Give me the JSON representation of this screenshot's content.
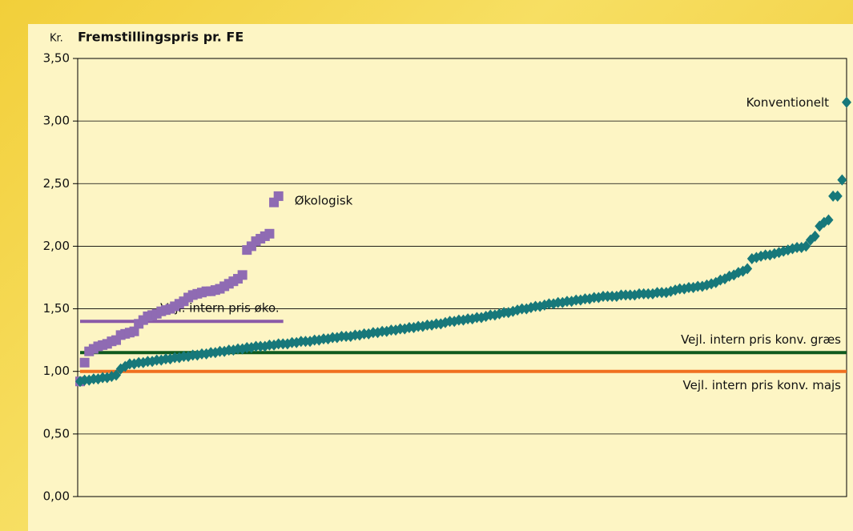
{
  "chart_data": {
    "type": "scatter",
    "title": "Fremstillingspris pr. FE",
    "y_label": "Kr.",
    "ylim": [
      0,
      3.5
    ],
    "yticks": [
      {
        "value": 0,
        "label": "0,00"
      },
      {
        "value": 0.5,
        "label": "0,50"
      },
      {
        "value": 1,
        "label": "1,00"
      },
      {
        "value": 1.5,
        "label": "1,50"
      },
      {
        "value": 2,
        "label": "2,00"
      },
      {
        "value": 2.5,
        "label": "2,50"
      },
      {
        "value": 3,
        "label": "3,00"
      },
      {
        "value": 3.5,
        "label": "3,50"
      }
    ],
    "grid": true,
    "series": [
      {
        "name": "Økologisk",
        "color": "#8f6bb3",
        "marker": "square",
        "values": [
          0.92,
          1.07,
          1.16,
          1.18,
          1.2,
          1.21,
          1.22,
          1.24,
          1.25,
          1.29,
          1.3,
          1.31,
          1.32,
          1.38,
          1.41,
          1.44,
          1.45,
          1.46,
          1.48,
          1.49,
          1.5,
          1.52,
          1.54,
          1.56,
          1.59,
          1.61,
          1.62,
          1.63,
          1.64,
          1.64,
          1.65,
          1.66,
          1.68,
          1.7,
          1.72,
          1.74,
          1.77,
          1.97,
          2.0,
          2.04,
          2.06,
          2.08,
          2.1,
          2.35,
          2.4
        ]
      },
      {
        "name": "Konventionelt",
        "color": "#17787a",
        "marker": "diamond",
        "values": [
          0.92,
          0.93,
          0.93,
          0.94,
          0.94,
          0.95,
          0.95,
          0.96,
          0.97,
          1.02,
          1.04,
          1.06,
          1.06,
          1.07,
          1.07,
          1.08,
          1.08,
          1.09,
          1.09,
          1.1,
          1.1,
          1.11,
          1.11,
          1.12,
          1.12,
          1.13,
          1.13,
          1.14,
          1.14,
          1.15,
          1.15,
          1.16,
          1.16,
          1.17,
          1.17,
          1.18,
          1.18,
          1.19,
          1.19,
          1.2,
          1.2,
          1.2,
          1.21,
          1.21,
          1.22,
          1.22,
          1.22,
          1.23,
          1.23,
          1.24,
          1.24,
          1.24,
          1.25,
          1.25,
          1.26,
          1.26,
          1.27,
          1.27,
          1.28,
          1.28,
          1.28,
          1.29,
          1.29,
          1.3,
          1.3,
          1.31,
          1.31,
          1.32,
          1.32,
          1.33,
          1.33,
          1.34,
          1.34,
          1.35,
          1.35,
          1.36,
          1.36,
          1.37,
          1.37,
          1.38,
          1.38,
          1.39,
          1.4,
          1.4,
          1.41,
          1.41,
          1.42,
          1.42,
          1.43,
          1.43,
          1.44,
          1.45,
          1.45,
          1.46,
          1.47,
          1.47,
          1.48,
          1.49,
          1.5,
          1.5,
          1.51,
          1.52,
          1.52,
          1.53,
          1.54,
          1.54,
          1.55,
          1.55,
          1.56,
          1.56,
          1.57,
          1.57,
          1.58,
          1.58,
          1.59,
          1.59,
          1.6,
          1.6,
          1.6,
          1.6,
          1.61,
          1.61,
          1.61,
          1.61,
          1.62,
          1.62,
          1.62,
          1.62,
          1.63,
          1.63,
          1.63,
          1.64,
          1.65,
          1.66,
          1.66,
          1.67,
          1.67,
          1.68,
          1.68,
          1.69,
          1.7,
          1.71,
          1.73,
          1.74,
          1.76,
          1.77,
          1.79,
          1.8,
          1.82,
          1.9,
          1.91,
          1.92,
          1.93,
          1.93,
          1.94,
          1.95,
          1.96,
          1.97,
          1.98,
          1.99,
          1.99,
          2.0,
          2.05,
          2.08,
          2.16,
          2.19,
          2.21,
          2.4,
          2.4,
          2.53,
          3.15
        ]
      }
    ],
    "reference_lines": [
      {
        "label": "Vejl. intern pris øko.",
        "value": 1.4,
        "color": "#8a5aa8",
        "span": "Økologisk",
        "label_side": "above"
      },
      {
        "label": "Vejl. intern pris konv. græs",
        "value": 1.15,
        "color": "#0f5a1e",
        "label_side": "above"
      },
      {
        "label": "Vejl. intern pris konv. majs",
        "value": 1.0,
        "color": "#f07020",
        "label_side": "below"
      }
    ]
  }
}
